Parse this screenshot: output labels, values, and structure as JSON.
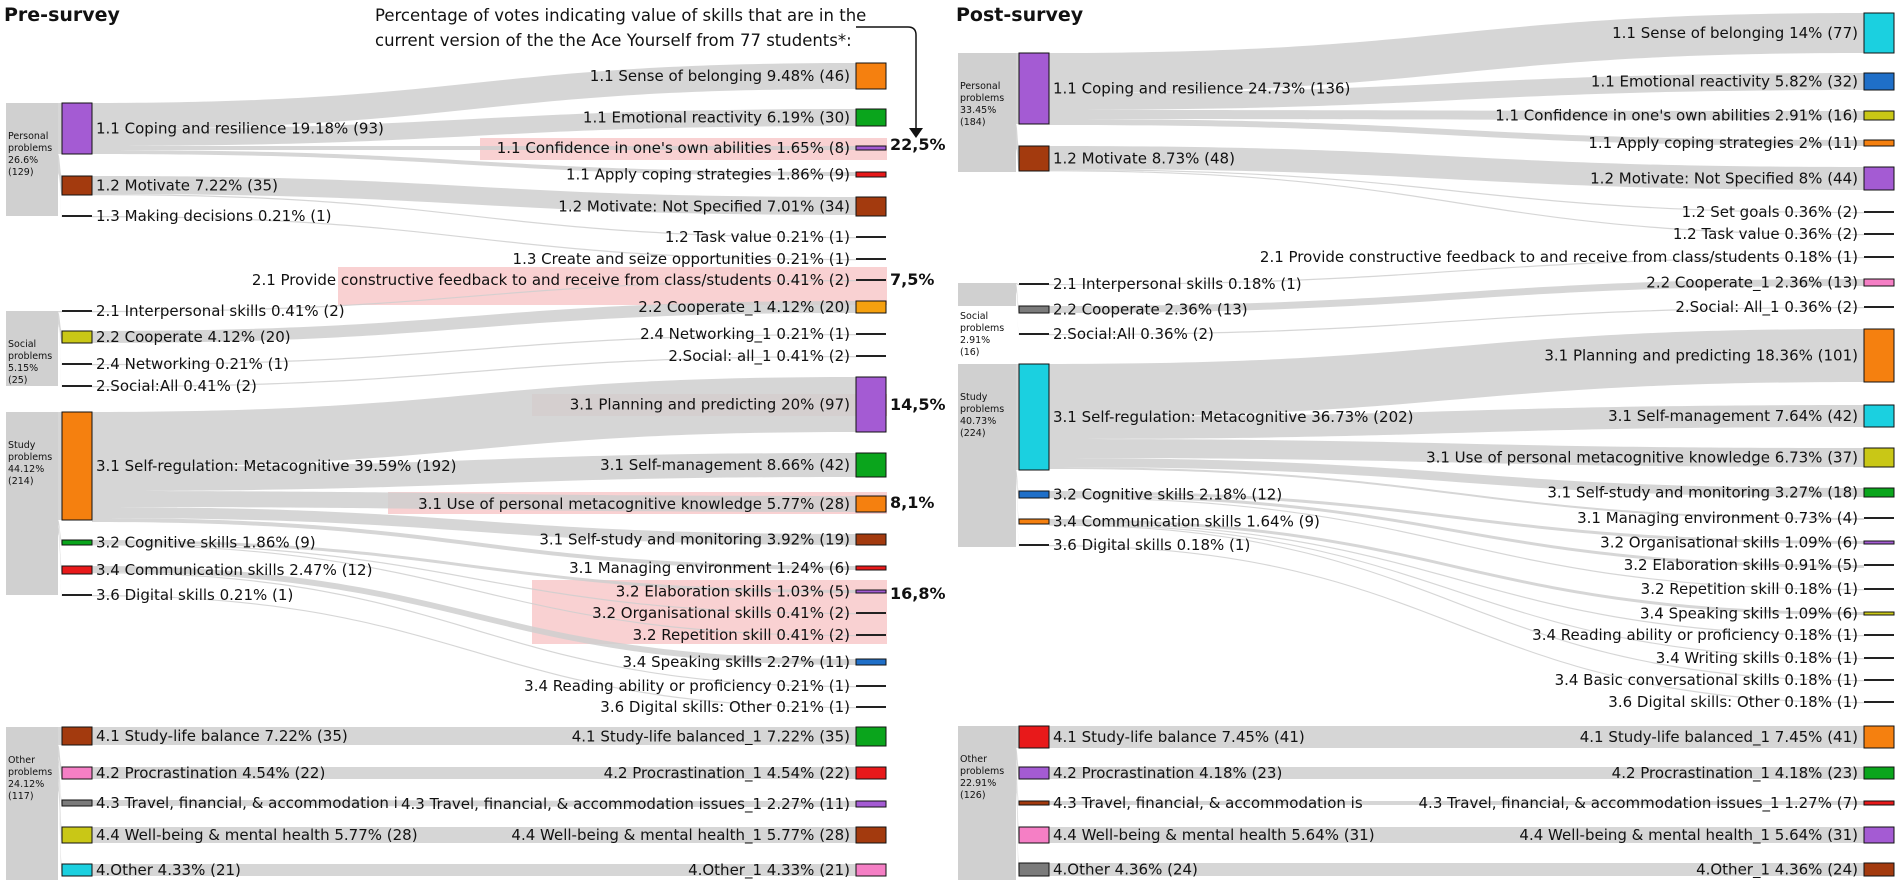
{
  "headers": {
    "pre": "Pre-survey",
    "post": "Post-survey",
    "note_line1": "Percentage of votes indicating value of skills that are in the",
    "note_line2": "current version of the the Ace Yourself from 77 students*:"
  },
  "pre": {
    "groups": [
      {
        "l1": "Personal",
        "l2": "problems",
        "l3": "26.6%",
        "l4": "(129)"
      },
      {
        "l1": "Social",
        "l2": "problems",
        "l3": "5.15%",
        "l4": "(25)"
      },
      {
        "l1": "Study",
        "l2": "problems",
        "l3": "44.12%",
        "l4": "(214)"
      },
      {
        "l1": "Other",
        "l2": "problems",
        "l3": "24.12%",
        "l4": "(117)"
      }
    ],
    "mid": [
      {
        "label": "1.1 Coping and resilience 19.18% (93)",
        "color": "#a45bd3"
      },
      {
        "label": "1.2 Motivate 7.22% (35)",
        "color": "#a33a0e"
      },
      {
        "label": "1.3 Making decisions 0.21% (1)",
        "color": "#222222"
      },
      {
        "label": "2.1 Interpersonal skills 0.41% (2)",
        "color": "#222222"
      },
      {
        "label": "2.2 Cooperate 4.12% (20)",
        "color": "#c9c716"
      },
      {
        "label": "2.4 Networking 0.21% (1)",
        "color": "#222222"
      },
      {
        "label": "2.Social:All 0.41% (2)",
        "color": "#222222"
      },
      {
        "label": "3.1 Self-regulation: Metacognitive 39.59% (192)",
        "color": "#f5800f"
      },
      {
        "label": "3.2 Cognitive skills 1.86% (9)",
        "color": "#0aa51c"
      },
      {
        "label": "3.4 Communication skills 2.47% (12)",
        "color": "#e8191a"
      },
      {
        "label": "3.6 Digital skills 0.21% (1)",
        "color": "#222222"
      },
      {
        "label": "4.1 Study-life balance 7.22% (35)",
        "color": "#a33a0e"
      },
      {
        "label": "4.2 Procrastination 4.54% (22)",
        "color": "#f57fc5"
      },
      {
        "label": "4.3 Travel, financial, & accommodation i",
        "color": "#7b7b7b"
      },
      {
        "label": "4.4 Well-being & mental health 5.77% (28)",
        "color": "#c9c716"
      },
      {
        "label": "4.Other 4.33% (21)",
        "color": "#1bd0e0"
      }
    ],
    "right": [
      {
        "label": "1.1 Sense of belonging 9.48% (46)",
        "color": "#f5800f"
      },
      {
        "label": "1.1 Emotional reactivity 6.19% (30)",
        "color": "#0aa51c"
      },
      {
        "label": "1.1 Confidence in one's own abilities 1.65% (8)",
        "color": "#a45bd3"
      },
      {
        "label": "1.1 Apply coping strategies 1.86% (9)",
        "color": "#e8191a"
      },
      {
        "label": "1.2 Motivate: Not Specified 7.01% (34)",
        "color": "#a33a0e"
      },
      {
        "label": "1.2 Task value 0.21% (1)",
        "color": "#222222"
      },
      {
        "label": "1.3 Create and seize opportunities 0.21% (1)",
        "color": "#222222"
      },
      {
        "label": "2.1 Provide constructive feedback to and receive from class/students 0.41% (2)",
        "color": "#222222"
      },
      {
        "label": "2.2 Cooperate_1 4.12% (20)",
        "color": "#f5a00f"
      },
      {
        "label": "2.4 Networking_1 0.21% (1)",
        "color": "#222222"
      },
      {
        "label": "2.Social: all_1 0.41% (2)",
        "color": "#222222"
      },
      {
        "label": "3.1 Planning and predicting 20% (97)",
        "color": "#a45bd3"
      },
      {
        "label": "3.1 Self-management 8.66% (42)",
        "color": "#0aa51c"
      },
      {
        "label": "3.1 Use of personal metacognitive knowledge 5.77% (28)",
        "color": "#f5800f"
      },
      {
        "label": "3.1 Self-study and monitoring 3.92% (19)",
        "color": "#a33a0e"
      },
      {
        "label": "3.1 Managing environment 1.24% (6)",
        "color": "#e8191a"
      },
      {
        "label": "3.2 Elaboration skills 1.03% (5)",
        "color": "#a45bd3"
      },
      {
        "label": "3.2 Organisational skills 0.41% (2)",
        "color": "#222222"
      },
      {
        "label": "3.2 Repetition skill 0.41% (2)",
        "color": "#222222"
      },
      {
        "label": "3.4 Speaking skills 2.27% (11)",
        "color": "#1f6fc8"
      },
      {
        "label": "3.4 Reading ability or proficiency 0.21% (1)",
        "color": "#222222"
      },
      {
        "label": "3.6 Digital skills: Other 0.21% (1)",
        "color": "#222222"
      },
      {
        "label": "4.1 Study-life balanced_1 7.22% (35)",
        "color": "#0aa51c"
      },
      {
        "label": "4.2 Procrastination_1 4.54% (22)",
        "color": "#e8191a"
      },
      {
        "label": "4.3 Travel, financial, & accommodation issues_1 2.27% (11)",
        "color": "#a45bd3"
      },
      {
        "label": "4.4 Well-being & mental health_1 5.77% (28)",
        "color": "#a33a0e"
      },
      {
        "label": "4.Other_1 4.33% (21)",
        "color": "#f57fc5"
      }
    ],
    "percent_marks": [
      "22,5%",
      "7,5%",
      "14,5%",
      "8,1%",
      "16,8%"
    ]
  },
  "post": {
    "groups": [
      {
        "l1": "Personal",
        "l2": "problems",
        "l3": "33.45%",
        "l4": "(184)"
      },
      {
        "l1": "Social",
        "l2": "problems",
        "l3": "2.91%",
        "l4": "(16)"
      },
      {
        "l1": "Study",
        "l2": "problems",
        "l3": "40.73%",
        "l4": "(224)"
      },
      {
        "l1": "Other",
        "l2": "problems",
        "l3": "22.91%",
        "l4": "(126)"
      }
    ],
    "mid": [
      {
        "label": "1.1 Coping and resilience 24.73% (136)",
        "color": "#a45bd3"
      },
      {
        "label": "1.2 Motivate 8.73% (48)",
        "color": "#a33a0e"
      },
      {
        "label": "2.1 Interpersonal skills 0.18% (1)",
        "color": "#222222"
      },
      {
        "label": "2.2 Cooperate 2.36% (13)",
        "color": "#7b7b7b"
      },
      {
        "label": "2.Social:All 0.36% (2)",
        "color": "#222222"
      },
      {
        "label": "3.1 Self-regulation: Metacognitive 36.73% (202)",
        "color": "#1bd0e0"
      },
      {
        "label": "3.2 Cognitive skills 2.18% (12)",
        "color": "#1f6fc8"
      },
      {
        "label": "3.4 Communication skills 1.64% (9)",
        "color": "#f5800f"
      },
      {
        "label": "3.6 Digital skills 0.18% (1)",
        "color": "#222222"
      },
      {
        "label": "4.1 Study-life balance 7.45% (41)",
        "color": "#e8191a"
      },
      {
        "label": "4.2 Procrastination 4.18% (23)",
        "color": "#a45bd3"
      },
      {
        "label": "4.3 Travel, financial, & accommodation is",
        "color": "#a33a0e"
      },
      {
        "label": "4.4 Well-being & mental health 5.64% (31)",
        "color": "#f57fc5"
      },
      {
        "label": "4.Other 4.36% (24)",
        "color": "#7b7b7b"
      }
    ],
    "right": [
      {
        "label": "1.1 Sense of belonging 14% (77)",
        "color": "#1bd0e0"
      },
      {
        "label": "1.1 Emotional reactivity 5.82% (32)",
        "color": "#1f6fc8"
      },
      {
        "label": "1.1 Confidence in one's own abilities 2.91% (16)",
        "color": "#c9c716"
      },
      {
        "label": "1.1 Apply coping strategies 2% (11)",
        "color": "#f5800f"
      },
      {
        "label": "1.2 Motivate: Not Specified 8% (44)",
        "color": "#a45bd3"
      },
      {
        "label": "1.2 Set goals 0.36% (2)",
        "color": "#222222"
      },
      {
        "label": "1.2 Task value 0.36% (2)",
        "color": "#222222"
      },
      {
        "label": "2.1 Provide constructive feedback to and receive from class/students 0.18% (1)",
        "color": "#222222"
      },
      {
        "label": "2.2 Cooperate_1 2.36% (13)",
        "color": "#f57fc5"
      },
      {
        "label": "2.Social: All_1 0.36% (2)",
        "color": "#222222"
      },
      {
        "label": "3.1 Planning and predicting 18.36% (101)",
        "color": "#f5800f"
      },
      {
        "label": "3.1 Self-management 7.64% (42)",
        "color": "#1bd0e0"
      },
      {
        "label": "3.1 Use of personal metacognitive knowledge 6.73% (37)",
        "color": "#c9c716"
      },
      {
        "label": "3.1 Self-study and monitoring 3.27% (18)",
        "color": "#0aa51c"
      },
      {
        "label": "3.1 Managing environment 0.73% (4)",
        "color": "#1f6fc8"
      },
      {
        "label": "3.2 Organisational skills 1.09% (6)",
        "color": "#a45bd3"
      },
      {
        "label": "3.2 Elaboration skills 0.91% (5)",
        "color": "#e8191a"
      },
      {
        "label": "3.2 Repetition skill 0.18% (1)",
        "color": "#222222"
      },
      {
        "label": "3.4 Speaking skills 1.09% (6)",
        "color": "#c9c716"
      },
      {
        "label": "3.4 Reading ability or proficiency 0.18% (1)",
        "color": "#222222"
      },
      {
        "label": "3.4 Writing skills 0.18% (1)",
        "color": "#222222"
      },
      {
        "label": "3.4 Basic conversational skills 0.18% (1)",
        "color": "#222222"
      },
      {
        "label": "3.6 Digital skills: Other 0.18% (1)",
        "color": "#222222"
      },
      {
        "label": "4.1 Study-life balanced_1 7.45% (41)",
        "color": "#f5800f"
      },
      {
        "label": "4.2 Procrastination_1 4.18% (23)",
        "color": "#0aa51c"
      },
      {
        "label": "4.3 Travel, financial, & accommodation issues_1 1.27% (7)",
        "color": "#e8191a"
      },
      {
        "label": "4.4 Well-being & mental health_1 5.64% (31)",
        "color": "#a45bd3"
      },
      {
        "label": "4.Other_1 4.36% (24)",
        "color": "#a33a0e"
      }
    ]
  }
}
